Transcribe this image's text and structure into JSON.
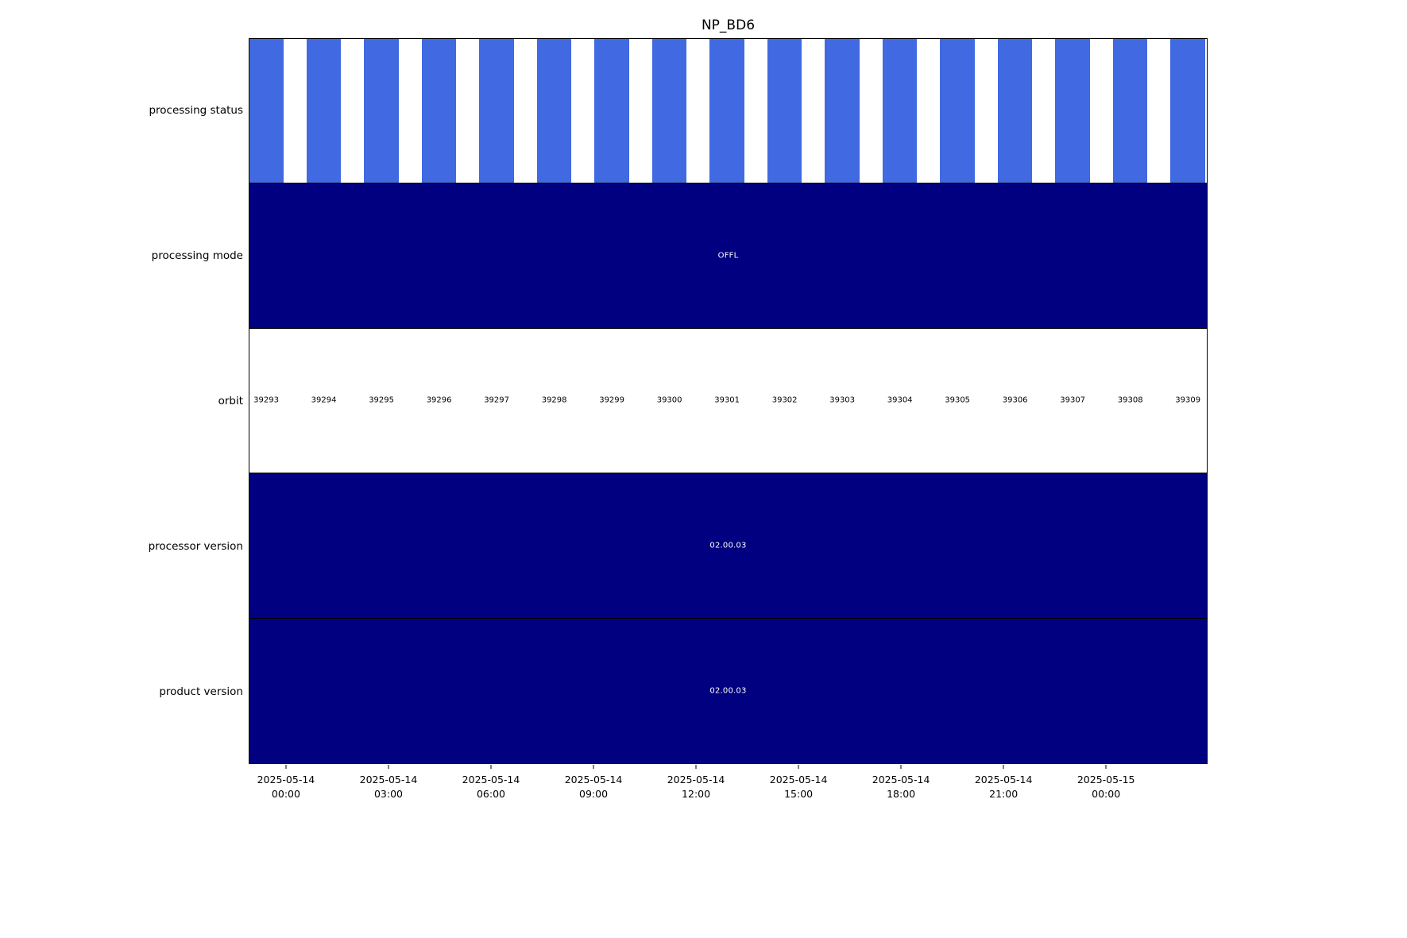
{
  "chart_data": {
    "type": "bar",
    "title": "NP_BD6",
    "orientation": "horizontal-timeline",
    "rows": [
      {
        "label": "processing status",
        "kind": "per_orbit_bars",
        "color": "#4169e1",
        "note": "one blue bar per orbit, identical status for all 17 orbits"
      },
      {
        "label": "processing mode",
        "kind": "full_span",
        "value": "OFFL",
        "color": "#000080",
        "text_color": "#ffffff"
      },
      {
        "label": "orbit",
        "kind": "orbit_labels",
        "color": "#ffffff",
        "text_color": "#000000"
      },
      {
        "label": "processor version",
        "kind": "full_span",
        "value": "02.00.03",
        "color": "#000080",
        "text_color": "#ffffff"
      },
      {
        "label": "product version",
        "kind": "full_span",
        "value": "02.00.03",
        "color": "#000080",
        "text_color": "#ffffff"
      }
    ],
    "orbits": [
      "39293",
      "39294",
      "39295",
      "39296",
      "39297",
      "39298",
      "39299",
      "39300",
      "39301",
      "39302",
      "39303",
      "39304",
      "39305",
      "39306",
      "39307",
      "39308",
      "39309"
    ],
    "x_ticks": [
      "2025-05-14\n00:00",
      "2025-05-14\n03:00",
      "2025-05-14\n06:00",
      "2025-05-14\n09:00",
      "2025-05-14\n12:00",
      "2025-05-14\n15:00",
      "2025-05-14\n18:00",
      "2025-05-14\n21:00",
      "2025-05-15\n00:00"
    ],
    "x_axis_label_lines": 2,
    "legend": "none",
    "grid": "off",
    "layout": {
      "row_height_pct": 20,
      "orbit_first_center_pct": 1.75,
      "orbit_step_pct": 6.017,
      "status_bar_width_pct": 3.6,
      "tick_first_pct": 3.89,
      "tick_step_pct": 10.69
    },
    "colors": {
      "status_bar": "#4169e1",
      "solid_bar": "#000080",
      "plot_background": "#ffffff",
      "border": "#000000"
    }
  }
}
